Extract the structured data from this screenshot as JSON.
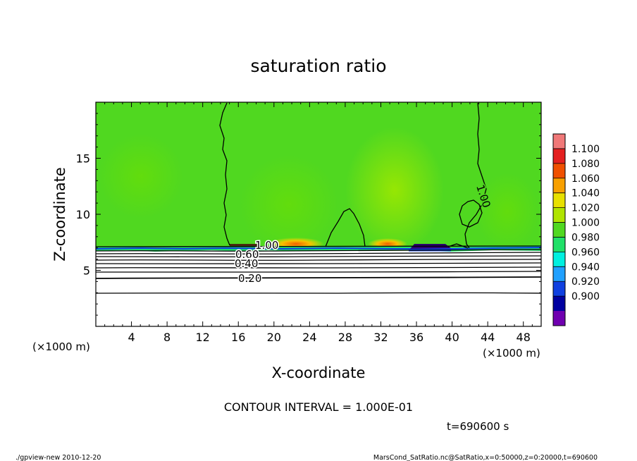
{
  "chart_data": {
    "type": "heatmap",
    "title": "saturation ratio",
    "xlabel": "X-coordinate",
    "ylabel": "Z-coordinate",
    "x_unit": "(×1000 m)",
    "y_unit": "(×1000 m)",
    "xlim": [
      0,
      50
    ],
    "ylim": [
      0,
      20
    ],
    "x_ticks": [
      "4",
      "8",
      "12",
      "16",
      "20",
      "24",
      "28",
      "32",
      "36",
      "40",
      "44",
      "48"
    ],
    "x_tick_values": [
      4,
      8,
      12,
      16,
      20,
      24,
      28,
      32,
      36,
      40,
      44,
      48
    ],
    "y_ticks": [
      "5",
      "10",
      "15"
    ],
    "y_tick_values": [
      5,
      10,
      15
    ],
    "contour_labels": [
      {
        "text": "1.00",
        "x": 18.5,
        "z": 7.2
      },
      {
        "text": "0.60",
        "x": 17.4,
        "z": 6.7
      },
      {
        "text": "0.40",
        "x": 17.3,
        "z": 5.6
      },
      {
        "text": "0.20",
        "x": 17.5,
        "z": 4.4
      },
      {
        "text": "1.00",
        "x": 43.0,
        "z": 11.6
      }
    ],
    "contour_interval": "CONTOUR INTERVAL = 1.000E-01",
    "time": "t=690600 s",
    "colorbar": {
      "levels": [
        "1.100",
        "1.080",
        "1.060",
        "1.040",
        "1.020",
        "1.000",
        "0.980",
        "0.960",
        "0.940",
        "0.920",
        "0.900"
      ],
      "colors": [
        "#f07878",
        "#e42020",
        "#f05000",
        "#f8a000",
        "#e8e000",
        "#b0e400",
        "#50d820",
        "#20e068",
        "#00f0e0",
        "#20a0ff",
        "#1040e0",
        "#0000a0",
        "#7000b0"
      ]
    },
    "legend_placement": "right"
  },
  "footer": {
    "left": "./gpview-new   2010-12-20",
    "right": "MarsCond_SatRatio.nc@SatRatio,x=0:50000,z=0:20000,t=690600"
  }
}
